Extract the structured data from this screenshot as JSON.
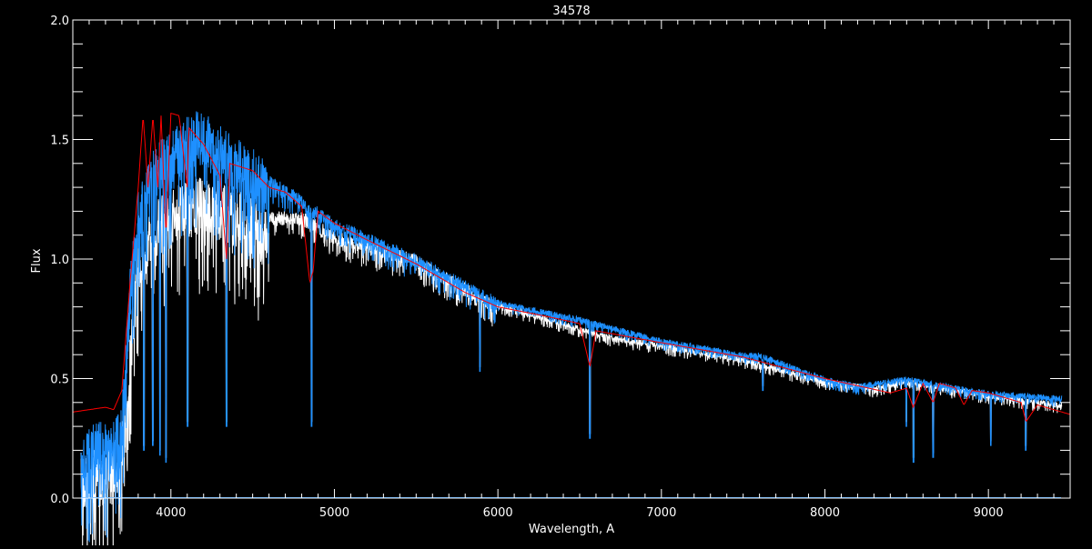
{
  "chart_data": {
    "type": "line",
    "title": "34578",
    "xlabel": "Wavelength, A",
    "ylabel": "Flux",
    "xlim": [
      3400,
      9500
    ],
    "ylim": [
      0.0,
      2.0
    ],
    "xticks": [
      "4000",
      "5000",
      "6000",
      "7000",
      "8000",
      "9000"
    ],
    "yticks": [
      "0.0",
      "0.5",
      "1.0",
      "1.5",
      "2.0"
    ],
    "grid": false,
    "colors": {
      "background": "#000000",
      "axes": "#ffffff",
      "observed_blue": "#1e90ff",
      "observed_white": "#ffffff",
      "model": "#ff0000"
    },
    "series": [
      {
        "key": "white",
        "color": "#ffffff",
        "x": [
          3450,
          3650,
          3700,
          3800,
          3900,
          4000,
          4200,
          4400,
          4600,
          4800,
          5000,
          5500,
          5800,
          6000,
          6500,
          6700,
          7000,
          7500,
          8000,
          8300,
          8500,
          9000,
          9450
        ],
        "y": [
          0.19,
          0.23,
          0.3,
          1.1,
          1.25,
          1.3,
          1.35,
          1.3,
          1.2,
          1.2,
          1.12,
          1.02,
          0.9,
          0.82,
          0.72,
          0.68,
          0.65,
          0.59,
          0.5,
          0.47,
          0.5,
          0.44,
          0.4
        ]
      },
      {
        "key": "blue",
        "color": "#1e90ff",
        "x": [
          3450,
          3650,
          3700,
          3750,
          3800,
          3900,
          4000,
          4100,
          4200,
          4300,
          4400,
          4600,
          4800,
          4850,
          4900,
          5000,
          5500,
          6000,
          6500,
          7000,
          7500,
          7600,
          8000,
          8200,
          8500,
          9000,
          9450
        ],
        "y": [
          0.21,
          0.25,
          0.3,
          0.9,
          1.2,
          1.4,
          1.45,
          1.52,
          1.55,
          1.48,
          1.42,
          1.33,
          1.25,
          1.2,
          1.2,
          1.15,
          1.0,
          0.82,
          0.75,
          0.66,
          0.6,
          0.6,
          0.5,
          0.47,
          0.5,
          0.44,
          0.42
        ],
        "absorption_lines": [
          [
            3835,
            0.2
          ],
          [
            3889,
            0.22
          ],
          [
            3933,
            0.18
          ],
          [
            3970,
            0.15
          ],
          [
            4102,
            0.3
          ],
          [
            4340,
            0.3
          ],
          [
            4861,
            0.3
          ],
          [
            5890,
            0.53
          ],
          [
            6563,
            0.25
          ],
          [
            7620,
            0.45
          ],
          [
            8498,
            0.3
          ],
          [
            8542,
            0.15
          ],
          [
            8662,
            0.17
          ],
          [
            9015,
            0.22
          ],
          [
            9229,
            0.2
          ]
        ]
      },
      {
        "key": "red",
        "color": "#ff0000",
        "x": [
          3400,
          3500,
          3600,
          3650,
          3700,
          3750,
          3800,
          3830,
          3860,
          3890,
          3920,
          3940,
          3970,
          4000,
          4050,
          4100,
          4110,
          4200,
          4300,
          4340,
          4360,
          4500,
          4600,
          4700,
          4800,
          4850,
          4870,
          4900,
          5000,
          5200,
          5500,
          5800,
          6000,
          6300,
          6500,
          6563,
          6600,
          7000,
          7500,
          8000,
          8200,
          8400,
          8500,
          8540,
          8600,
          8662,
          8700,
          8800,
          8850,
          8900,
          9000,
          9100,
          9200,
          9230,
          9300,
          9500
        ],
        "y": [
          0.36,
          0.37,
          0.38,
          0.37,
          0.45,
          0.9,
          1.3,
          1.6,
          1.3,
          1.6,
          1.3,
          1.6,
          1.1,
          1.61,
          1.6,
          1.3,
          1.55,
          1.48,
          1.35,
          1.0,
          1.4,
          1.37,
          1.3,
          1.28,
          1.22,
          0.9,
          0.95,
          1.2,
          1.15,
          1.08,
          0.98,
          0.86,
          0.8,
          0.76,
          0.73,
          0.55,
          0.7,
          0.65,
          0.59,
          0.5,
          0.47,
          0.44,
          0.46,
          0.38,
          0.48,
          0.4,
          0.48,
          0.46,
          0.39,
          0.45,
          0.44,
          0.42,
          0.4,
          0.32,
          0.39,
          0.35
        ]
      }
    ]
  }
}
